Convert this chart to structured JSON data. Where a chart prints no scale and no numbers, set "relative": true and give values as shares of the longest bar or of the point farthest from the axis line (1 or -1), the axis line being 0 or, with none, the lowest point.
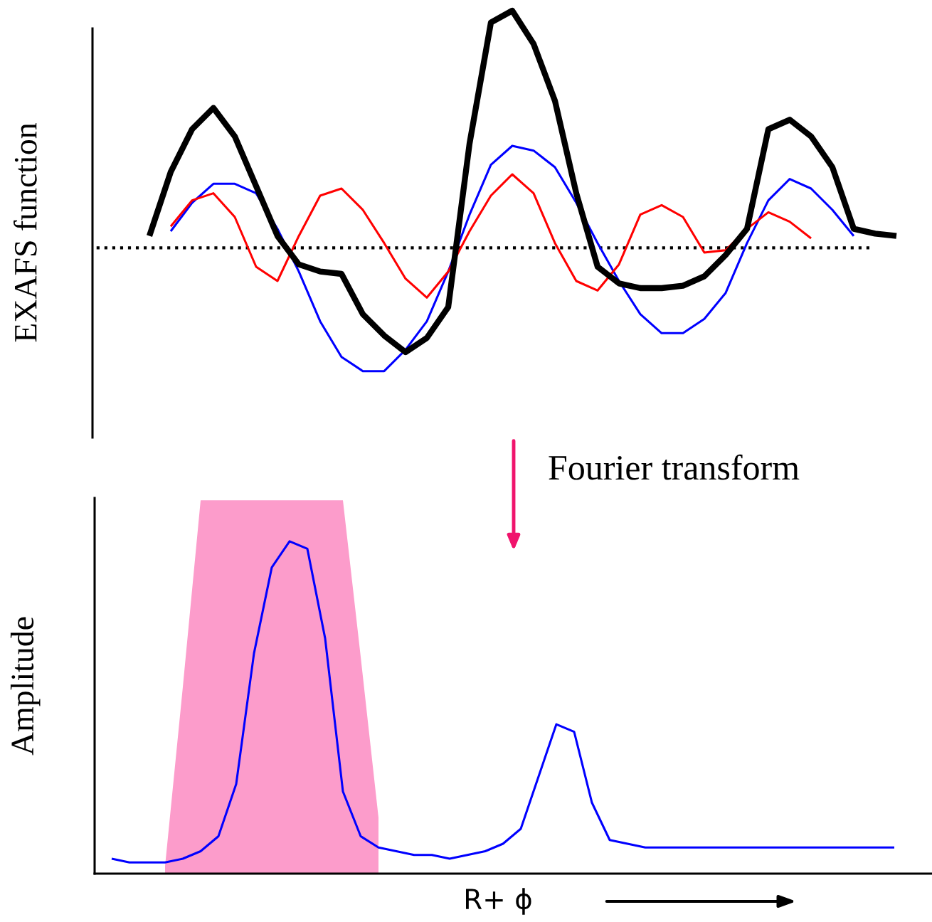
{
  "chart_data": [
    {
      "type": "line",
      "relative": true,
      "ylabel": "EXAFS function",
      "grid": false,
      "categories": [
        null,
        null,
        null,
        null,
        null,
        null,
        null,
        null,
        null,
        null,
        null,
        null,
        null,
        null,
        null,
        null,
        null,
        null,
        null,
        null,
        null,
        null,
        null,
        null,
        null,
        null,
        null,
        null,
        null,
        null,
        null,
        null,
        null,
        null,
        null,
        null
      ],
      "series": [
        {
          "color": "#0000ff",
          "values": [
            null,
            0.07,
            0.19,
            0.27,
            0.27,
            0.23,
            0.08,
            -0.1,
            -0.31,
            -0.46,
            -0.52,
            -0.52,
            -0.43,
            -0.31,
            -0.1,
            0.14,
            0.35,
            0.43,
            0.41,
            0.34,
            0.19,
            0.02,
            -0.14,
            -0.28,
            -0.36,
            -0.36,
            -0.3,
            -0.19,
            0.02,
            0.2,
            0.29,
            0.25,
            0.16,
            0.05,
            null,
            null
          ]
        },
        {
          "color": "#ff0000",
          "values": [
            null,
            0.09,
            0.2,
            0.23,
            0.13,
            -0.08,
            -0.14,
            0.05,
            0.22,
            0.25,
            0.16,
            0.02,
            -0.13,
            -0.21,
            -0.1,
            0.07,
            0.22,
            0.31,
            0.23,
            0.02,
            -0.14,
            -0.18,
            -0.07,
            0.14,
            0.18,
            0.13,
            -0.02,
            -0.01,
            0.08,
            0.15,
            0.11,
            0.04,
            null,
            null,
            null,
            null
          ]
        },
        {
          "color": "#000000",
          "values": [
            0.05,
            0.32,
            0.5,
            0.59,
            0.47,
            0.26,
            0.05,
            -0.07,
            -0.1,
            -0.11,
            -0.28,
            -0.37,
            -0.44,
            -0.38,
            -0.25,
            0.44,
            0.95,
            1.0,
            0.86,
            0.62,
            0.23,
            -0.08,
            -0.15,
            -0.17,
            -0.17,
            -0.16,
            -0.12,
            -0.03,
            0.08,
            0.5,
            0.54,
            0.47,
            0.34,
            0.08,
            0.06,
            0.05
          ]
        }
      ],
      "ref_lines": [
        {
          "axis": "y",
          "value": 0,
          "color": "#000000",
          "line_style": "dotted"
        }
      ]
    },
    {
      "type": "line",
      "relative": true,
      "ylabel": "Amplitude",
      "xlabel": "R+ ϕ",
      "grid": false,
      "annotations": [
        "Fourier transform"
      ],
      "categories": [
        null,
        null,
        null,
        null,
        null,
        null,
        null,
        null,
        null,
        null,
        null,
        null,
        null,
        null,
        null,
        null,
        null,
        null,
        null,
        null,
        null,
        null,
        null,
        null,
        null,
        null,
        null,
        null,
        null,
        null,
        null,
        null,
        null,
        null,
        null,
        null,
        null,
        null,
        null,
        null,
        null,
        null,
        null,
        null,
        null
      ],
      "series": [
        {
          "type": "area",
          "color": "#fc9ccb",
          "values": [
            null,
            null,
            null,
            0.02,
            0.5,
            1,
            1,
            1,
            1,
            1,
            1,
            1,
            1,
            1,
            0.58,
            0.15,
            null,
            null,
            null,
            null,
            null,
            null,
            null,
            null,
            null,
            null,
            null,
            null,
            null,
            null,
            null,
            null,
            null,
            null,
            null,
            null,
            null,
            null,
            null,
            null,
            null,
            null,
            null,
            null,
            null
          ]
        },
        {
          "type": "line",
          "color": "#0000ff",
          "values": [
            0.04,
            0.03,
            0.03,
            0.03,
            0.04,
            0.06,
            0.1,
            0.24,
            0.59,
            0.82,
            0.89,
            0.87,
            0.63,
            0.22,
            0.1,
            0.07,
            0.06,
            0.05,
            0.05,
            0.04,
            0.05,
            0.06,
            0.08,
            0.12,
            0.26,
            0.4,
            0.38,
            0.19,
            0.09,
            0.08,
            0.07,
            0.07,
            0.07,
            0.07,
            0.07,
            0.07,
            0.07,
            0.07,
            0.07,
            0.07,
            0.07,
            0.07,
            0.07,
            0.07,
            0.07
          ]
        }
      ]
    }
  ]
}
